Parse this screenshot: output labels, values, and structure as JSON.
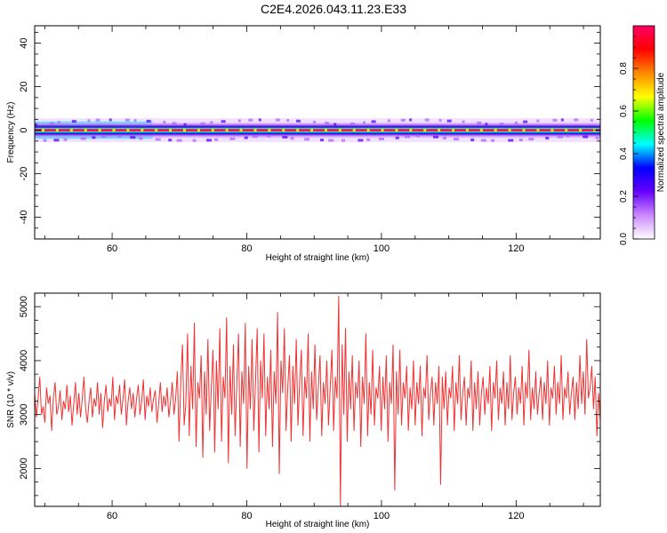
{
  "title": "C2E4.2026.043.11.23.E33",
  "colors": {
    "snr_line": "#ee3333",
    "frame": "#000000"
  },
  "chart_data": [
    {
      "type": "heatmap",
      "title": "",
      "xlabel": "Height of straight line (km)",
      "ylabel": "Frequency (Hz)",
      "xlim": [
        48.5,
        132.5
      ],
      "ylim": [
        -50,
        48
      ],
      "x_ticks": [
        60,
        80,
        100,
        120
      ],
      "y_ticks": [
        -40,
        -20,
        0,
        20,
        40
      ],
      "colorbar": {
        "label": "Normalized spectral amplitude",
        "range": [
          0,
          1
        ],
        "ticks": [
          0.0,
          0.2,
          0.4,
          0.6,
          0.8
        ],
        "colormap": [
          "#ffffff",
          "#cc88ff",
          "#6600ff",
          "#0000ff",
          "#00ffff",
          "#00ff00",
          "#ffff00",
          "#ff8800",
          "#ff0000",
          "#ff0066"
        ]
      },
      "band": {
        "center_freq": 0,
        "center_amplitude": 0.9,
        "half_width_hz": 2.5,
        "broad_segments": [
          {
            "x_range": [
              48.5,
              66
            ],
            "half_width_hz": 4
          }
        ]
      }
    },
    {
      "type": "line",
      "title": "",
      "xlabel": "Height of straight line (km)",
      "ylabel": "SNR (10 * v/v)",
      "xlim": [
        48.5,
        132.5
      ],
      "ylim": [
        1300,
        5250
      ],
      "x_ticks": [
        60,
        80,
        100,
        120
      ],
      "y_ticks": [
        2000,
        3000,
        4000,
        5000
      ],
      "series": [
        {
          "x_start": 48.5,
          "x_end": 132.5,
          "values": [
            3400,
            2950,
            3300,
            3700,
            3000,
            3150,
            2850,
            3500,
            3200,
            3350,
            2700,
            3300,
            3600,
            3000,
            3150,
            3450,
            2900,
            3250,
            3100,
            3550,
            3050,
            3350,
            2800,
            3200,
            3600,
            3000,
            3400,
            2950,
            3300,
            3700,
            3100,
            2850,
            3250,
            3500,
            2950,
            3300,
            3150,
            3600,
            3000,
            3400,
            2750,
            3250,
            3550,
            3050,
            3300,
            3150,
            3700,
            2900,
            3350,
            3200,
            3550,
            3000,
            3300,
            3650,
            2800,
            3250,
            3500,
            3100,
            3400,
            2950,
            3300,
            3550,
            3000,
            3250,
            3650,
            2900,
            3350,
            3150,
            3500,
            3050,
            3300,
            3450,
            2850,
            3200,
            3600,
            3050,
            3350,
            3150,
            3500,
            2950,
            3250,
            3600,
            3000,
            3300,
            3800,
            2500,
            3600,
            4300,
            2800,
            3200,
            4500,
            2600,
            3900,
            3100,
            4700,
            2400,
            3600,
            3300,
            4100,
            2200,
            3800,
            3000,
            4400,
            2700,
            3500,
            4200,
            2300,
            4000,
            3100,
            4600,
            2500,
            3700,
            3300,
            4800,
            2100,
            3900,
            3000,
            4300,
            2600,
            3600,
            4500,
            2400,
            3800,
            3200,
            4700,
            2000,
            3900,
            3100,
            4400,
            2700,
            3600,
            4600,
            2300,
            4000,
            3300,
            4500,
            2600,
            3700,
            3100,
            4200,
            2400,
            3800,
            3200,
            4900,
            1900,
            4000,
            3400,
            4600,
            2700,
            3500,
            4100,
            2500,
            3900,
            3200,
            4400,
            2800,
            3600,
            4200,
            2600,
            3700,
            3300,
            4500,
            2500,
            3800,
            3100,
            4300,
            2900,
            3500,
            4100,
            2600,
            3600,
            3200,
            4000,
            2800,
            3500,
            4200,
            2700,
            3700,
            3300,
            5200,
            1300,
            4300,
            3000,
            4600,
            2500,
            3800,
            3100,
            4100,
            2700,
            3600,
            3300,
            4000,
            2400,
            3700,
            3200,
            4500,
            2600,
            3600,
            3000,
            4200,
            2800,
            3500,
            3300,
            3900,
            2700,
            3700,
            3100,
            4100,
            2500,
            3600,
            3200,
            4300,
            1600,
            3800,
            3000,
            4200,
            2800,
            3600,
            3300,
            3900,
            2700,
            3500,
            3100,
            4000,
            2800,
            3600,
            3200,
            3900,
            2600,
            3500,
            3300,
            4100,
            2900,
            3400,
            3700,
            2800,
            3600,
            3200,
            3900,
            1700,
            3700,
            3100,
            3800,
            2800,
            3500,
            3300,
            3900,
            2700,
            3600,
            3200,
            4100,
            2900,
            3400,
            3700,
            2800,
            3500,
            3300,
            4000,
            2700,
            3600,
            3100,
            3800,
            2800,
            3400,
            3700,
            3000,
            3500,
            3200,
            3900,
            2700,
            3600,
            3300,
            4000,
            2900,
            3500,
            3200,
            3800,
            2800,
            3600,
            3100,
            4100,
            2900,
            3400,
            3700,
            3000,
            3500,
            3200,
            3900,
            2800,
            3600,
            3300,
            4200,
            2900,
            3500,
            3100,
            3800,
            3000,
            3400,
            3700,
            2900,
            3600,
            3200,
            4000,
            2800,
            3500,
            3300,
            3900,
            3000,
            3600,
            3200,
            4100,
            2900,
            3500,
            3300,
            3800,
            3000,
            3400,
            3700,
            2900,
            3600,
            3100,
            4100,
            3200,
            3800,
            3000,
            4400,
            3300,
            3500,
            3900,
            3100,
            3700,
            2600,
            3400,
            2900
          ]
        }
      ]
    }
  ]
}
